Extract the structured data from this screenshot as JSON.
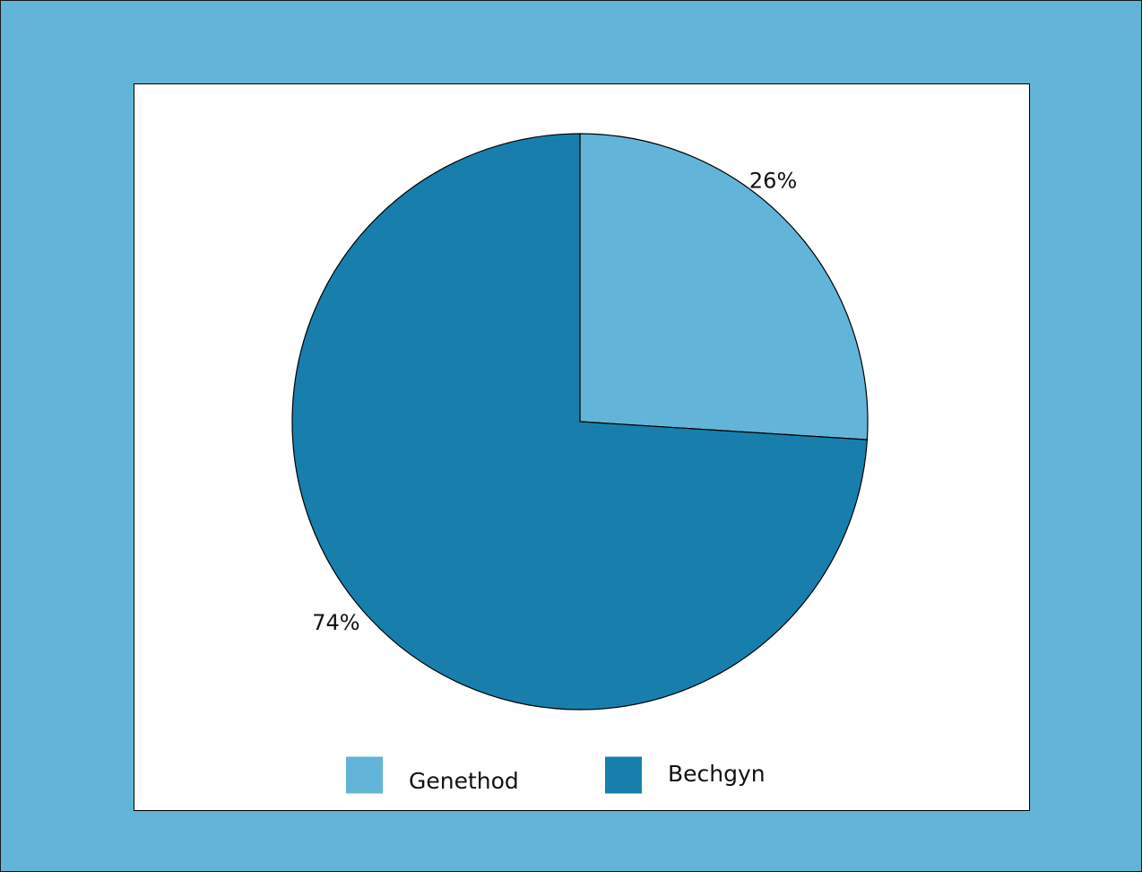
{
  "page": {
    "background_color": "#62b5d9",
    "plot_background": "#ffffff"
  },
  "chart_data": {
    "type": "pie",
    "title": "",
    "start_angle_deg": 0,
    "direction": "clockwise",
    "slices": [
      {
        "label": "Genethod",
        "value": 26,
        "value_label": "26%",
        "color": "#62b5d9"
      },
      {
        "label": "Bechgyn",
        "value": 74,
        "value_label": "74%",
        "color": "#187fad"
      }
    ],
    "legend": {
      "placement": "bottom",
      "items": [
        "Genethod",
        "Bechgyn"
      ]
    }
  }
}
